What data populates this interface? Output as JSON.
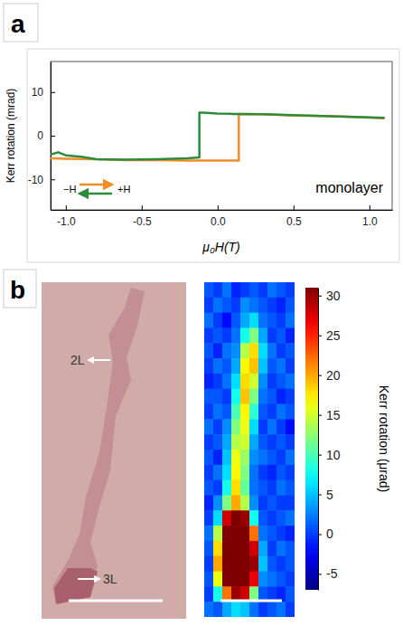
{
  "chart_data": [
    {
      "type": "line",
      "panel": "a",
      "x_label": "μ₀H(T)",
      "y_label": "Kerr rotation (mrad)",
      "annotations": [
        "−H",
        "+H",
        "monolayer"
      ],
      "series": [
        {
          "color": "#f28c28",
          "x": [
            -1.1,
            -1.0,
            -0.8,
            -0.6,
            -0.4,
            -0.2,
            0.0,
            0.14,
            0.14,
            0.3,
            0.5,
            0.7,
            0.9,
            1.1
          ],
          "values": [
            -5.2,
            -5.3,
            -5.4,
            -5.6,
            -5.6,
            -5.7,
            -5.7,
            -5.7,
            5.0,
            4.9,
            4.6,
            4.5,
            4.3,
            4.0
          ]
        },
        {
          "color": "#2e8b3a",
          "x": [
            1.1,
            0.9,
            0.7,
            0.5,
            0.3,
            0.1,
            0.0,
            -0.1,
            -0.12,
            -0.12,
            -0.2,
            -0.4,
            -0.6,
            -0.8,
            -0.9,
            -1.0,
            -1.05,
            -1.1
          ],
          "values": [
            4.1,
            4.3,
            4.5,
            4.7,
            4.9,
            5.0,
            5.1,
            5.3,
            5.3,
            -5.0,
            -5.2,
            -5.4,
            -5.5,
            -5.4,
            -4.8,
            -4.5,
            -3.8,
            -4.3
          ]
        }
      ],
      "xlim": [
        -1.1,
        1.15
      ],
      "xticks": [
        {
          "value": -1,
          "label": "-1.0"
        },
        -0.5,
        {
          "value": 0,
          "label": "0.0"
        },
        0.5,
        {
          "value": 1,
          "label": "1.0"
        }
      ],
      "ylim": [
        -17,
        17
      ],
      "yticks": [
        -10,
        0,
        10
      ]
    },
    {
      "type": "heatmap",
      "panel": "b",
      "annotations": [
        "2L",
        "3L"
      ],
      "tick_labels": false,
      "cells": [
        [
          1,
          0,
          2,
          -1,
          0,
          1,
          0,
          2,
          1,
          0
        ],
        [
          0,
          2,
          1,
          0,
          3,
          2,
          1,
          0,
          -1,
          1
        ],
        [
          2,
          0,
          -2,
          1,
          4,
          6,
          2,
          1,
          0,
          2
        ],
        [
          0,
          1,
          0,
          2,
          8,
          12,
          4,
          0,
          1,
          -1
        ],
        [
          1,
          -1,
          2,
          3,
          14,
          18,
          6,
          2,
          0,
          1
        ],
        [
          0,
          2,
          1,
          4,
          17,
          19,
          5,
          1,
          2,
          0
        ],
        [
          -1,
          0,
          2,
          6,
          18,
          15,
          3,
          0,
          1,
          2
        ],
        [
          1,
          1,
          0,
          8,
          19,
          12,
          2,
          1,
          -1,
          0
        ],
        [
          0,
          2,
          1,
          10,
          17,
          9,
          1,
          0,
          2,
          1
        ],
        [
          2,
          0,
          3,
          12,
          16,
          6,
          0,
          2,
          0,
          -2
        ],
        [
          0,
          1,
          4,
          14,
          15,
          4,
          1,
          0,
          1,
          0
        ],
        [
          1,
          -1,
          5,
          16,
          13,
          3,
          2,
          1,
          0,
          2
        ],
        [
          0,
          2,
          6,
          17,
          12,
          2,
          0,
          -1,
          1,
          0
        ],
        [
          1,
          0,
          8,
          18,
          11,
          2,
          1,
          0,
          2,
          1
        ],
        [
          -1,
          3,
          12,
          20,
          14,
          3,
          0,
          1,
          0,
          0
        ],
        [
          0,
          6,
          28,
          32,
          30,
          8,
          1,
          0,
          1,
          2
        ],
        [
          2,
          14,
          33,
          34,
          33,
          22,
          2,
          1,
          0,
          -1
        ],
        [
          1,
          18,
          34,
          35,
          34,
          28,
          4,
          0,
          2,
          1
        ],
        [
          0,
          20,
          34,
          35,
          35,
          30,
          5,
          1,
          0,
          1
        ],
        [
          1,
          16,
          33,
          34,
          34,
          27,
          3,
          2,
          1,
          0
        ],
        [
          0,
          8,
          22,
          30,
          28,
          12,
          1,
          0,
          -1,
          1
        ],
        [
          2,
          1,
          4,
          6,
          5,
          2,
          0,
          1,
          2,
          0
        ]
      ],
      "colorbar": {
        "label": "Kerr rotation (μrad)",
        "range": [
          -7,
          31
        ],
        "ticks": [
          -5,
          0,
          5,
          10,
          15,
          20,
          25,
          30
        ]
      }
    }
  ]
}
